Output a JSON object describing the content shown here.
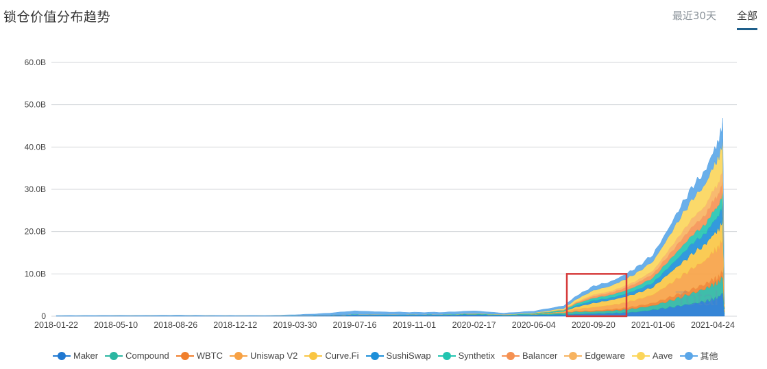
{
  "header": {
    "title": "锁仓价值分布趋势",
    "tabs": [
      {
        "label": "最近30天",
        "active": false
      },
      {
        "label": "全部",
        "active": true
      }
    ]
  },
  "chart_data": {
    "type": "area",
    "stacked": true,
    "title": "锁仓价值分布趋势",
    "xlabel": "",
    "ylabel": "",
    "ylim": [
      0,
      60
    ],
    "y_ticks": [
      "0",
      "10.0B",
      "20.0B",
      "30.0B",
      "40.0B",
      "50.0B",
      "60.0B"
    ],
    "x_ticks": [
      "2018-01-22",
      "2018-05-10",
      "2018-08-26",
      "2018-12-12",
      "2019-03-30",
      "2019-07-16",
      "2019-11-01",
      "2020-02-17",
      "2020-06-04",
      "2020-09-20",
      "2021-01-06",
      "2021-04-24"
    ],
    "grid": true,
    "legend_position": "bottom",
    "units": "Billion USD",
    "x": [
      "2018-01-22",
      "2018-03-16",
      "2018-05-10",
      "2018-07-03",
      "2018-08-26",
      "2018-10-19",
      "2018-12-12",
      "2019-02-04",
      "2019-03-30",
      "2019-05-23",
      "2019-07-16",
      "2019-09-08",
      "2019-11-01",
      "2019-12-25",
      "2020-02-17",
      "2020-04-11",
      "2020-06-04",
      "2020-07-28",
      "2020-08-20",
      "2020-09-20",
      "2020-10-20",
      "2020-11-13",
      "2020-12-07",
      "2021-01-06",
      "2021-02-01",
      "2021-02-25",
      "2021-03-20",
      "2021-04-10",
      "2021-04-24",
      "2021-05-04",
      "2021-05-12",
      "2021-05-15"
    ],
    "series": [
      {
        "name": "Maker",
        "color": "#1f78d1",
        "values": [
          0.05,
          0.05,
          0.06,
          0.06,
          0.06,
          0.06,
          0.06,
          0.05,
          0.1,
          0.2,
          0.35,
          0.3,
          0.3,
          0.3,
          0.4,
          0.2,
          0.3,
          0.4,
          0.5,
          0.6,
          0.7,
          0.8,
          1.0,
          1.5,
          2.0,
          2.5,
          3.0,
          3.5,
          4.0,
          4.5,
          5.5,
          0.5
        ]
      },
      {
        "name": "Compound",
        "color": "#2ab6a1",
        "values": [
          0,
          0,
          0,
          0,
          0,
          0,
          0,
          0,
          0,
          0,
          0,
          0,
          0.01,
          0.02,
          0.05,
          0.05,
          0.1,
          0.4,
          0.6,
          0.5,
          0.6,
          0.7,
          0.9,
          1.0,
          1.5,
          2.0,
          2.5,
          3.0,
          3.5,
          3.5,
          4.0,
          0.4
        ]
      },
      {
        "name": "WBTC",
        "color": "#f07f2c",
        "values": [
          0,
          0,
          0,
          0,
          0,
          0,
          0,
          0,
          0,
          0,
          0,
          0,
          0,
          0,
          0.01,
          0.01,
          0.01,
          0.05,
          0.1,
          0.2,
          0.3,
          0.4,
          0.5,
          0.6,
          0.8,
          0.9,
          1.0,
          1.1,
          1.2,
          1.2,
          1.3,
          0.2
        ]
      },
      {
        "name": "Uniswap V2",
        "color": "#f7a144",
        "values": [
          0,
          0,
          0,
          0,
          0,
          0,
          0,
          0,
          0,
          0,
          0,
          0,
          0,
          0,
          0,
          0,
          0.05,
          0.2,
          0.5,
          0.8,
          1.0,
          1.2,
          1.5,
          2.0,
          3.0,
          4.0,
          5.0,
          5.5,
          6.5,
          7.0,
          7.5,
          0.3
        ]
      },
      {
        "name": "Curve.Fi",
        "color": "#f9c542",
        "values": [
          0,
          0,
          0,
          0,
          0,
          0,
          0,
          0,
          0,
          0,
          0,
          0,
          0,
          0,
          0.01,
          0.01,
          0.02,
          0.1,
          0.5,
          1.0,
          1.2,
          1.4,
          1.5,
          1.8,
          2.5,
          3.0,
          3.5,
          3.8,
          4.0,
          4.2,
          4.5,
          0.2
        ]
      },
      {
        "name": "SushiSwap",
        "color": "#1d8fd9",
        "values": [
          0,
          0,
          0,
          0,
          0,
          0,
          0,
          0,
          0,
          0,
          0,
          0,
          0,
          0,
          0,
          0,
          0,
          0,
          0.3,
          0.6,
          0.5,
          0.6,
          0.8,
          1.0,
          1.5,
          2.0,
          2.5,
          2.5,
          3.0,
          3.2,
          3.5,
          0.2
        ]
      },
      {
        "name": "Synthetix",
        "color": "#22c4b0",
        "values": [
          0.01,
          0.01,
          0.01,
          0.01,
          0.01,
          0.01,
          0.01,
          0.02,
          0.03,
          0.05,
          0.1,
          0.1,
          0.1,
          0.1,
          0.15,
          0.1,
          0.2,
          0.3,
          0.5,
          0.6,
          0.7,
          0.8,
          0.9,
          1.2,
          1.5,
          1.8,
          2.0,
          2.2,
          2.5,
          2.5,
          2.8,
          0.2
        ]
      },
      {
        "name": "Balancer",
        "color": "#f59152",
        "values": [
          0,
          0,
          0,
          0,
          0,
          0,
          0,
          0,
          0,
          0,
          0,
          0,
          0,
          0,
          0,
          0,
          0.02,
          0.1,
          0.2,
          0.4,
          0.5,
          0.6,
          0.7,
          0.9,
          1.3,
          1.7,
          2.0,
          2.2,
          2.5,
          2.6,
          2.8,
          0.2
        ]
      },
      {
        "name": "Edgeware",
        "color": "#f7b360",
        "values": [
          0,
          0,
          0,
          0,
          0,
          0,
          0,
          0,
          0,
          0,
          0,
          0,
          0,
          0,
          0,
          0,
          0,
          0,
          0.2,
          0.4,
          0.4,
          0.5,
          0.6,
          0.8,
          1.2,
          1.6,
          2.0,
          2.2,
          2.5,
          2.6,
          2.8,
          0.2
        ]
      },
      {
        "name": "Aave",
        "color": "#fbd55a",
        "values": [
          0,
          0,
          0,
          0,
          0,
          0,
          0,
          0,
          0,
          0,
          0,
          0,
          0,
          0.01,
          0.05,
          0.05,
          0.1,
          0.3,
          0.6,
          1.0,
          1.2,
          1.5,
          1.8,
          2.2,
          3.0,
          4.0,
          4.5,
          5.0,
          5.5,
          6.0,
          6.5,
          0.4
        ]
      },
      {
        "name": "其他",
        "color": "#5aa6e8",
        "values": [
          0.1,
          0.12,
          0.15,
          0.15,
          0.18,
          0.15,
          0.12,
          0.12,
          0.2,
          0.4,
          0.8,
          0.6,
          0.5,
          0.5,
          0.6,
          0.3,
          0.4,
          0.6,
          0.8,
          1.0,
          1.0,
          1.1,
          1.3,
          1.6,
          2.0,
          2.5,
          3.0,
          3.2,
          3.5,
          3.8,
          4.5,
          0.3
        ]
      }
    ],
    "annotations": [
      {
        "type": "highlight-rectangle",
        "color": "#d63a3a",
        "x_range": [
          "2020-07-28",
          "2020-11-13"
        ],
        "y_range": [
          0,
          10
        ]
      }
    ]
  },
  "legend": {
    "items": [
      "Maker",
      "Compound",
      "WBTC",
      "Uniswap V2",
      "Curve.Fi",
      "SushiSwap",
      "Synthetix",
      "Balancer",
      "Edgeware",
      "Aave",
      "其他"
    ]
  }
}
